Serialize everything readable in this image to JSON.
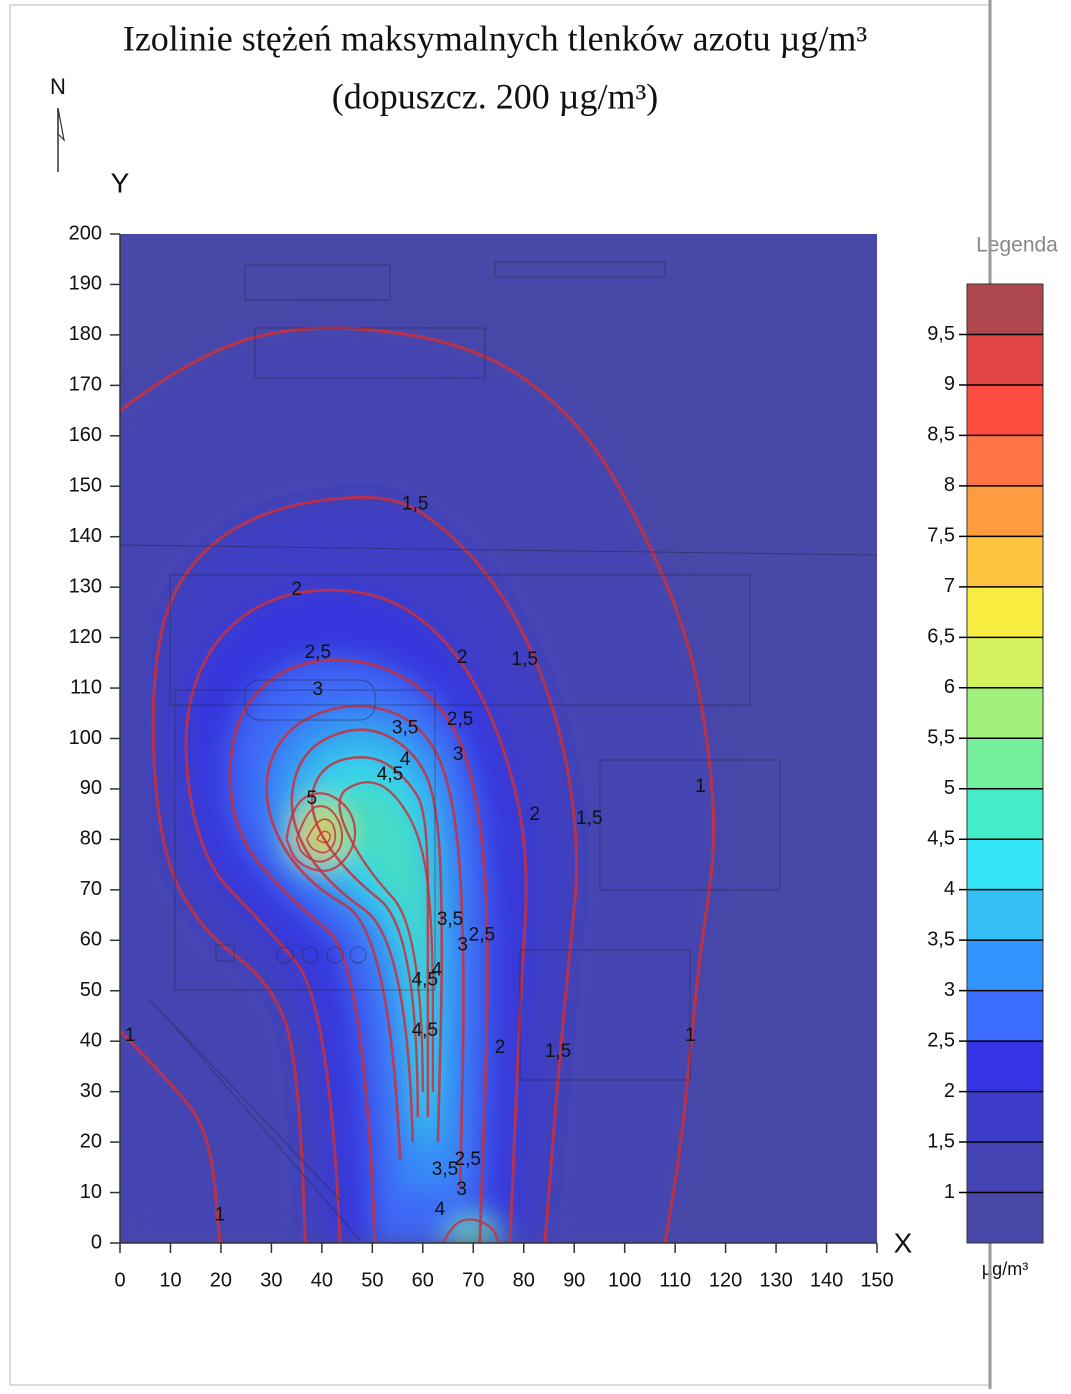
{
  "chart_data": {
    "type": "contour",
    "title": "Izolinie stężeń maksymalnych tlenków azotu µg/m³",
    "subtitle": "(dopuszcz. 200 µg/m³)",
    "north": "N",
    "x_label": "X",
    "y_label": "Y",
    "xlim": [
      0,
      150
    ],
    "ylim": [
      0,
      200
    ],
    "xticks": [
      0,
      10,
      20,
      30,
      40,
      50,
      60,
      70,
      80,
      90,
      100,
      110,
      120,
      130,
      140,
      150
    ],
    "yticks": [
      0,
      10,
      20,
      30,
      40,
      50,
      60,
      70,
      80,
      90,
      100,
      110,
      120,
      130,
      140,
      150,
      160,
      170,
      180,
      190,
      200
    ],
    "background_color": "#4848a8",
    "line_color": "#c8303c",
    "colorbar": {
      "title": "Legenda",
      "unit": "µg/m³",
      "lim": [
        0.5,
        10
      ],
      "ticks": [
        1,
        {
          "value": 1.5,
          "label": "1,5"
        },
        2,
        {
          "value": 2.5,
          "label": "2,5"
        },
        3,
        {
          "value": 3.5,
          "label": "3,5"
        },
        4,
        {
          "value": 4.5,
          "label": "4,5"
        },
        5,
        {
          "value": 5.5,
          "label": "5,5"
        },
        6,
        {
          "value": 6.5,
          "label": "6,5"
        },
        7,
        {
          "value": 7.5,
          "label": "7,5"
        },
        8,
        {
          "value": 8.5,
          "label": "8,5"
        },
        9,
        {
          "value": 9.5,
          "label": "9,5"
        }
      ],
      "colors": [
        "#4848a8",
        "#4444b4",
        "#3c3cc8",
        "#3434e4",
        "#3c6cff",
        "#3494ff",
        "#34c0f4",
        "#34e4f8",
        "#44ecc8",
        "#74f09c",
        "#a4f07c",
        "#d4f05c",
        "#f8ec40",
        "#ffc440",
        "#ff9c40",
        "#ff7444",
        "#ff4c40",
        "#e04444",
        "#b04850"
      ]
    },
    "contours": [
      {
        "level": 1,
        "label": "1",
        "x": [
          0,
          15.9,
          39.6,
          71.3,
          91.1,
          103,
          113,
          117,
          118,
          115,
          113,
          111,
          108
        ],
        "y": [
          165,
          177,
          182.6,
          178,
          163,
          143,
          119.5,
          96,
          78,
          58,
          38,
          18,
          0
        ],
        "label_x": [
          115,
          113
        ],
        "label_y": [
          90.4,
          41
        ]
      },
      {
        "level": 1,
        "label": "1",
        "x": [
          0,
          9.9,
          17.8,
          19.8
        ],
        "y": [
          42,
          32,
          22,
          0
        ],
        "label_x": [
          2,
          19.8
        ],
        "label_y": [
          41,
          5.5
        ]
      },
      {
        "level": 1.5,
        "label": "1,5",
        "x": [
          36.7,
          35.7,
          29.7,
          15.9,
          7.9,
          5.9,
          9.9,
          25.8,
          51.5,
          63.4,
          77.3,
          87.2,
          91.1,
          89.2,
          87.2,
          84.2
        ],
        "y": [
          0,
          36,
          52,
          62,
          78,
          108,
          131,
          145,
          149,
          143,
          127.5,
          103.7,
          78,
          58,
          38,
          0
        ],
        "label_x": [
          58.5,
          80.2,
          93,
          86.8
        ],
        "label_y": [
          146.4,
          115.6,
          84,
          37.9
        ]
      },
      {
        "level": 2,
        "label": "2",
        "x": [
          43.6,
          41.6,
          27.7,
          15.9,
          11.9,
          17.8,
          31.7,
          51.5,
          65.4,
          75.3,
          81.2,
          79.3,
          77.3
        ],
        "y": [
          0,
          48,
          64,
          76,
          101.7,
          119.5,
          129.4,
          129.4,
          119.5,
          101.7,
          78,
          48,
          0
        ],
        "label_x": [
          35,
          67.8,
          82.2,
          75.3
        ],
        "label_y": [
          129.4,
          116,
          84.8,
          38.7
        ]
      },
      {
        "level": 2.5,
        "label": "2,5",
        "x": [
          50.5,
          48.5,
          33.7,
          21.8,
          21.8,
          33.7,
          51.5,
          65.4,
          71.3,
          73.3,
          71.3
        ],
        "y": [
          0,
          56,
          68,
          82,
          103.7,
          115.6,
          115.6,
          105.6,
          87.8,
          58,
          0
        ],
        "label_x": [
          39.2,
          67.4,
          71.7,
          68.9
        ],
        "label_y": [
          117,
          103.7,
          61,
          16.5
        ]
      },
      {
        "level": 3,
        "label": "3",
        "x": [
          55.5,
          53.5,
          35.7,
          27.7,
          31.7,
          45.6,
          59.4,
          66.3,
          68.4,
          67.4
        ],
        "y": [
          16.5,
          62,
          72,
          87.8,
          101.7,
          107.6,
          103.7,
          89.8,
          58,
          10.5
        ],
        "label_x": [
          39.2,
          67,
          67.9,
          67.7
        ],
        "label_y": [
          109.6,
          96.7,
          59,
          10.5
        ]
      },
      {
        "level": 3.5,
        "label": "3,5",
        "x": [
          58,
          57,
          40,
          33,
          36,
          48,
          58,
          63,
          64,
          63
        ],
        "y": [
          20,
          60,
          72,
          85,
          98,
          103,
          98,
          88,
          60,
          20
        ],
        "label_x": [
          56.5,
          65.4,
          64.4
        ],
        "label_y": [
          102,
          64,
          14.5
        ]
      },
      {
        "level": 4,
        "label": "4",
        "x": [
          59,
          59,
          44,
          37,
          40,
          50,
          57,
          61,
          61,
          61
        ],
        "y": [
          25,
          62,
          74,
          86,
          95,
          97,
          92,
          85,
          55,
          25
        ],
        "label_x": [
          56.5,
          62.8,
          63.4
        ],
        "label_y": [
          95.7,
          54,
          6.5
        ]
      },
      {
        "level": 4.5,
        "label": "4,5",
        "x": [
          60,
          60,
          48,
          42,
          48,
          54,
          60,
          62,
          62
        ],
        "y": [
          30,
          62,
          75,
          88,
          92,
          90,
          80,
          62,
          30
        ],
        "label_x": [
          53.5,
          60.4,
          60.4
        ],
        "label_y": [
          92.8,
          52,
          42
        ]
      },
      {
        "level": 5,
        "label": "5",
        "x": [
          33,
          34,
          40,
          46,
          47,
          42,
          35,
          33
        ],
        "y": [
          80,
          87,
          90,
          86,
          79,
          73,
          75,
          80
        ],
        "label_x": [
          38
        ],
        "label_y": [
          88
        ]
      },
      {
        "level": 6,
        "x": [
          35,
          37,
          41,
          44,
          44,
          40,
          36,
          35
        ],
        "y": [
          80,
          86,
          87,
          83,
          78,
          75,
          77,
          80
        ]
      },
      {
        "level": 7,
        "x": [
          37,
          39,
          42,
          43,
          41,
          38,
          37
        ],
        "y": [
          80,
          84,
          84,
          80,
          77,
          78,
          80
        ]
      },
      {
        "level": 8,
        "x": [
          39,
          40,
          42,
          41,
          39
        ],
        "y": [
          80,
          82,
          81,
          79,
          80
        ]
      },
      {
        "level": 5,
        "x": [
          64,
          66,
          70,
          74,
          75
        ],
        "y": [
          0,
          4,
          5,
          3,
          0
        ]
      }
    ]
  }
}
